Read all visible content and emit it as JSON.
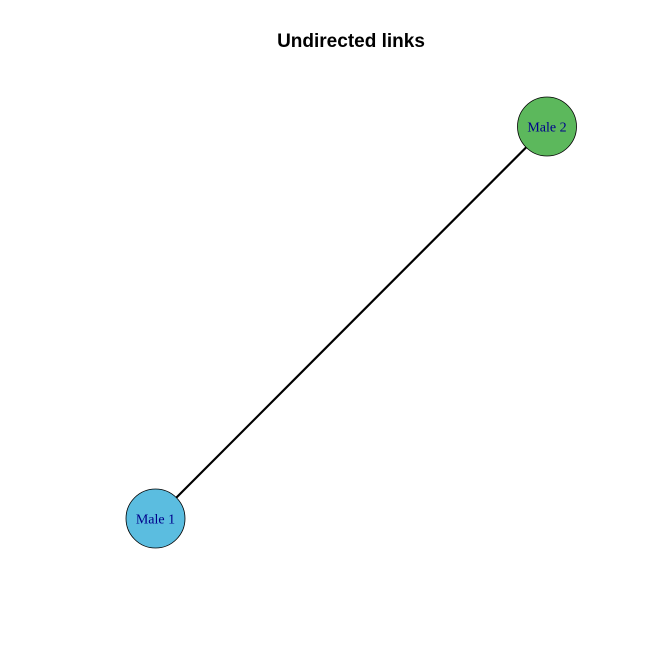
{
  "title": "Undirected links",
  "colors": {
    "background": "#ffffff",
    "edge": "#000000",
    "node_border": "#000000",
    "label": "#00008b"
  },
  "nodes": [
    {
      "id": "male1",
      "label": "Male 1",
      "color": "#5bbde0"
    },
    {
      "id": "male2",
      "label": "Male 2",
      "color": "#5cb85c"
    }
  ],
  "edges": [
    {
      "from": "male1",
      "to": "male2",
      "directed": false
    }
  ]
}
